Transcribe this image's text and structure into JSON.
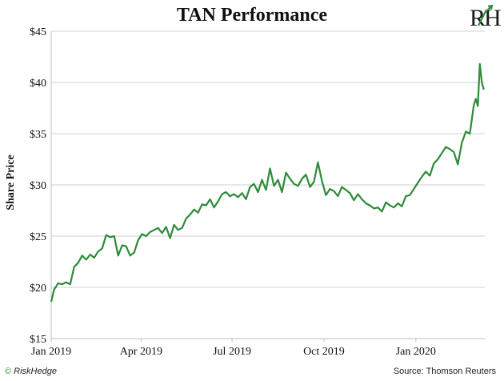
{
  "chart_data": {
    "type": "line",
    "title": "TAN Performance",
    "xlabel": "",
    "ylabel": "Share Price",
    "ylim": [
      15,
      45
    ],
    "yticks": [
      15,
      20,
      25,
      30,
      35,
      40,
      45
    ],
    "ytick_labels": [
      "$15",
      "$20",
      "$25",
      "$30",
      "$35",
      "$40",
      "$45"
    ],
    "xlim": [
      "2019-01-01",
      "2020-03-10"
    ],
    "xticks": [
      "2019-01-01",
      "2019-04-01",
      "2019-07-01",
      "2019-10-01",
      "2020-01-01"
    ],
    "xtick_labels": [
      "Jan 2019",
      "Apr 2019",
      "Jul 2019",
      "Oct 2019",
      "Jan 2020"
    ],
    "grid": "horizontal",
    "line_color": "#2e8b3a",
    "series": [
      {
        "x": [
          "2019-01-01",
          "2019-01-04",
          "2019-01-08",
          "2019-01-12",
          "2019-01-16",
          "2019-01-20",
          "2019-01-24",
          "2019-01-28",
          "2019-02-01",
          "2019-02-05",
          "2019-02-09",
          "2019-02-13",
          "2019-02-17",
          "2019-02-21",
          "2019-02-25",
          "2019-03-01",
          "2019-03-05",
          "2019-03-09",
          "2019-03-13",
          "2019-03-17",
          "2019-03-21",
          "2019-03-25",
          "2019-03-29",
          "2019-04-02",
          "2019-04-06",
          "2019-04-10",
          "2019-04-14",
          "2019-04-18",
          "2019-04-22",
          "2019-04-26",
          "2019-04-30",
          "2019-05-04",
          "2019-05-08",
          "2019-05-12",
          "2019-05-16",
          "2019-05-20",
          "2019-05-24",
          "2019-05-28",
          "2019-06-01",
          "2019-06-05",
          "2019-06-09",
          "2019-06-13",
          "2019-06-17",
          "2019-06-21",
          "2019-06-25",
          "2019-06-29",
          "2019-07-03",
          "2019-07-07",
          "2019-07-11",
          "2019-07-15",
          "2019-07-19",
          "2019-07-23",
          "2019-07-27",
          "2019-07-31",
          "2019-08-04",
          "2019-08-08",
          "2019-08-12",
          "2019-08-16",
          "2019-08-20",
          "2019-08-24",
          "2019-08-28",
          "2019-09-01",
          "2019-09-05",
          "2019-09-09",
          "2019-09-13",
          "2019-09-17",
          "2019-09-21",
          "2019-09-25",
          "2019-09-29",
          "2019-10-03",
          "2019-10-07",
          "2019-10-11",
          "2019-10-15",
          "2019-10-19",
          "2019-10-23",
          "2019-10-27",
          "2019-10-31",
          "2019-11-04",
          "2019-11-08",
          "2019-11-12",
          "2019-11-16",
          "2019-11-20",
          "2019-11-24",
          "2019-11-28",
          "2019-12-02",
          "2019-12-06",
          "2019-12-10",
          "2019-12-14",
          "2019-12-18",
          "2019-12-22",
          "2019-12-26",
          "2019-12-30",
          "2020-01-03",
          "2020-01-07",
          "2020-01-11",
          "2020-01-15",
          "2020-01-19",
          "2020-01-23",
          "2020-01-27",
          "2020-01-31",
          "2020-02-04",
          "2020-02-08",
          "2020-02-12",
          "2020-02-16",
          "2020-02-20",
          "2020-02-24",
          "2020-02-28",
          "2020-03-01",
          "2020-03-03",
          "2020-03-05",
          "2020-03-07",
          "2020-03-09"
        ],
        "values": [
          18.6,
          19.8,
          20.4,
          20.3,
          20.5,
          20.3,
          22.0,
          22.4,
          23.1,
          22.7,
          23.2,
          22.9,
          23.5,
          23.8,
          25.1,
          24.9,
          25.0,
          23.1,
          24.1,
          24.0,
          23.1,
          23.4,
          24.6,
          25.2,
          25.0,
          25.4,
          25.6,
          25.8,
          25.3,
          25.9,
          24.8,
          26.1,
          25.6,
          25.8,
          26.7,
          27.1,
          27.6,
          27.3,
          28.1,
          28.0,
          28.6,
          27.8,
          28.4,
          29.1,
          29.3,
          28.9,
          29.1,
          28.8,
          29.2,
          28.6,
          29.8,
          30.1,
          29.3,
          30.5,
          29.5,
          31.6,
          29.9,
          30.5,
          29.3,
          31.2,
          30.6,
          30.1,
          29.9,
          30.6,
          31.0,
          29.8,
          30.3,
          32.2,
          30.4,
          29.0,
          29.6,
          29.4,
          28.9,
          29.8,
          29.5,
          29.2,
          28.5,
          29.1,
          28.6,
          28.2,
          28.0,
          27.7,
          27.8,
          27.4,
          28.3,
          28.0,
          27.8,
          28.2,
          27.9,
          28.9,
          29.0,
          29.6,
          30.2,
          30.8,
          31.3,
          30.9,
          32.1,
          32.5,
          33.1,
          33.7,
          33.5,
          33.2,
          32.0,
          34.1,
          35.2,
          35.0,
          37.8,
          38.4,
          37.7,
          41.8,
          40.0,
          39.3
        ]
      }
    ]
  },
  "footer": {
    "brand": "RiskHedge",
    "brand_mark": "©",
    "source": "Source: Thomson Reuters"
  },
  "logo_text": "RH"
}
